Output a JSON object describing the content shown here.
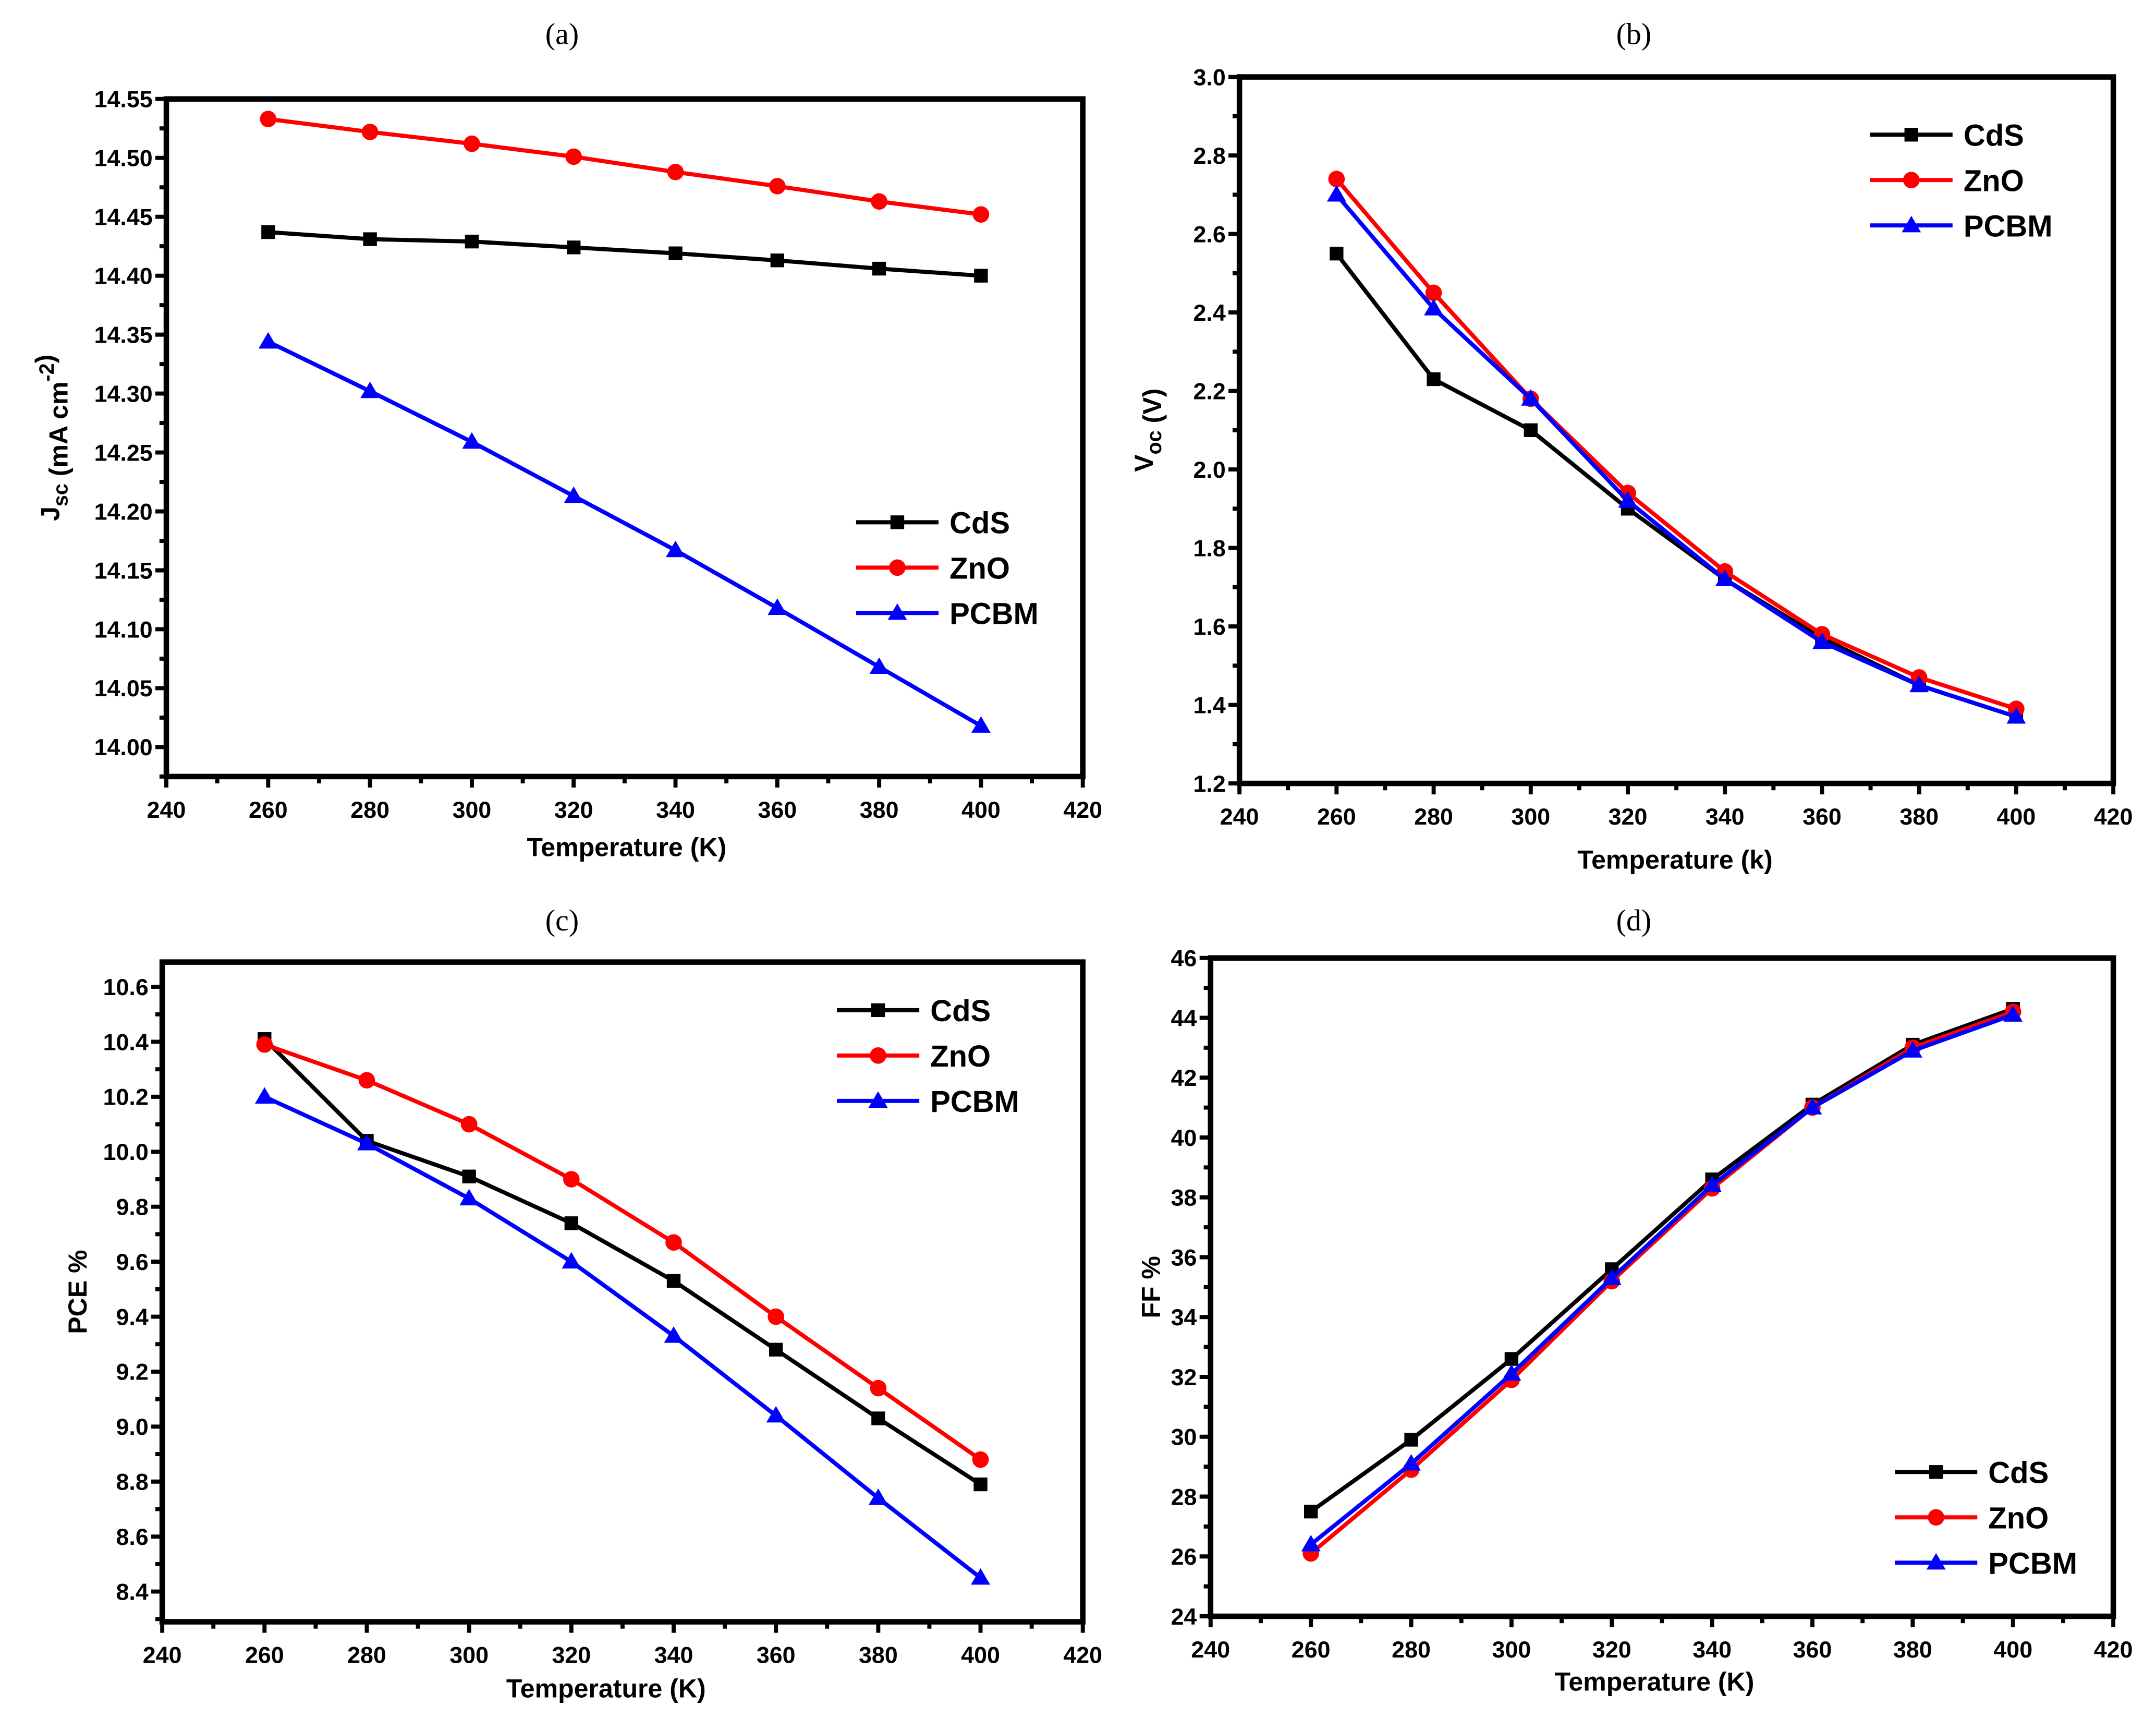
{
  "chart_data": [
    {
      "type": "line",
      "title": "(a)",
      "xlabel": "Temperature (K)",
      "ylabel": "Jsc (mA cm-2)",
      "ylabel_parts": [
        {
          "t": "J"
        },
        {
          "t": "sc",
          "sub": true
        },
        {
          "t": " (mA cm"
        },
        {
          "t": "-2",
          "sup": true
        },
        {
          "t": ")"
        }
      ],
      "xlim": [
        240,
        420
      ],
      "ylim": [
        13.975,
        14.55
      ],
      "xticks": [
        240,
        260,
        280,
        300,
        320,
        340,
        360,
        380,
        400,
        420
      ],
      "yticks": [
        "14.00",
        "14.05",
        "14.10",
        "14.15",
        "14.20",
        "14.25",
        "14.30",
        "14.35",
        "14.40",
        "14.45",
        "14.50",
        "14.55"
      ],
      "legend_position": "center-right",
      "x": [
        260,
        280,
        300,
        320,
        340,
        360,
        380,
        400
      ],
      "series": [
        {
          "name": "CdS",
          "color": "#000000",
          "marker": "square",
          "values": [
            14.437,
            14.431,
            14.429,
            14.424,
            14.419,
            14.413,
            14.406,
            14.4
          ]
        },
        {
          "name": "ZnO",
          "color": "#ff0000",
          "marker": "circle",
          "values": [
            14.533,
            14.522,
            14.512,
            14.501,
            14.488,
            14.476,
            14.463,
            14.452
          ]
        },
        {
          "name": "PCBM",
          "color": "#0000ff",
          "marker": "triangle",
          "values": [
            14.344,
            14.302,
            14.259,
            14.213,
            14.167,
            14.118,
            14.068,
            14.018
          ]
        }
      ]
    },
    {
      "type": "line",
      "title": "(b)",
      "xlabel": "Temperature (k)",
      "ylabel": "Voc (V)",
      "ylabel_parts": [
        {
          "t": "V"
        },
        {
          "t": "oc",
          "sub": true
        },
        {
          "t": " (V)"
        }
      ],
      "xlim": [
        240,
        420
      ],
      "ylim": [
        1.2,
        3.0
      ],
      "xticks": [
        240,
        260,
        280,
        300,
        320,
        340,
        360,
        380,
        400,
        420
      ],
      "yticks": [
        "1.2",
        "1.4",
        "1.6",
        "1.8",
        "2.0",
        "2.2",
        "2.4",
        "2.6",
        "2.8",
        "3.0"
      ],
      "legend_position": "top-right",
      "x": [
        260,
        280,
        300,
        320,
        340,
        360,
        380,
        400
      ],
      "series": [
        {
          "name": "CdS",
          "color": "#000000",
          "marker": "square",
          "values": [
            2.55,
            2.23,
            2.1,
            1.9,
            1.72,
            1.57,
            1.45,
            1.37
          ]
        },
        {
          "name": "ZnO",
          "color": "#ff0000",
          "marker": "circle",
          "values": [
            2.74,
            2.45,
            2.18,
            1.94,
            1.74,
            1.58,
            1.47,
            1.39
          ]
        },
        {
          "name": "PCBM",
          "color": "#0000ff",
          "marker": "triangle",
          "values": [
            2.7,
            2.41,
            2.18,
            1.92,
            1.72,
            1.56,
            1.45,
            1.37
          ]
        }
      ]
    },
    {
      "type": "line",
      "title": "(c)",
      "xlabel": "Temperature (K)",
      "ylabel": "PCE %",
      "ylabel_parts": [
        {
          "t": "PCE %"
        }
      ],
      "xlim": [
        240,
        420
      ],
      "ylim": [
        8.29,
        10.69
      ],
      "xticks": [
        240,
        260,
        280,
        300,
        320,
        340,
        360,
        380,
        400,
        420
      ],
      "yticks": [
        "8.4",
        "8.6",
        "8.8",
        "9.0",
        "9.2",
        "9.4",
        "9.6",
        "9.8",
        "10.0",
        "10.2",
        "10.4",
        "10.6"
      ],
      "legend_position": "top-right",
      "x": [
        260,
        280,
        300,
        320,
        340,
        360,
        380,
        400
      ],
      "series": [
        {
          "name": "CdS",
          "color": "#000000",
          "marker": "square",
          "values": [
            10.41,
            10.04,
            9.91,
            9.74,
            9.53,
            9.28,
            9.03,
            8.79
          ]
        },
        {
          "name": "ZnO",
          "color": "#ff0000",
          "marker": "circle",
          "values": [
            10.39,
            10.26,
            10.1,
            9.9,
            9.67,
            9.4,
            9.14,
            8.88
          ]
        },
        {
          "name": "PCBM",
          "color": "#0000ff",
          "marker": "triangle",
          "values": [
            10.2,
            10.03,
            9.83,
            9.6,
            9.33,
            9.04,
            8.74,
            8.45
          ]
        }
      ]
    },
    {
      "type": "line",
      "title": "(d)",
      "xlabel": "Temperature (K)",
      "ylabel": "FF %",
      "ylabel_parts": [
        {
          "t": "FF %"
        }
      ],
      "xlim": [
        240,
        420
      ],
      "ylim": [
        24,
        46
      ],
      "xticks": [
        240,
        260,
        280,
        300,
        320,
        340,
        360,
        380,
        400,
        420
      ],
      "yticks": [
        "24",
        "26",
        "28",
        "30",
        "32",
        "34",
        "36",
        "38",
        "40",
        "42",
        "44",
        "46"
      ],
      "legend_position": "bottom-right",
      "x": [
        260,
        280,
        300,
        320,
        340,
        360,
        380,
        400
      ],
      "series": [
        {
          "name": "CdS",
          "color": "#000000",
          "marker": "square",
          "values": [
            27.5,
            29.9,
            32.6,
            35.6,
            38.6,
            41.1,
            43.1,
            44.3
          ]
        },
        {
          "name": "ZnO",
          "color": "#ff0000",
          "marker": "circle",
          "values": [
            26.1,
            28.9,
            31.9,
            35.2,
            38.3,
            41.0,
            43.0,
            44.2
          ]
        },
        {
          "name": "PCBM",
          "color": "#0000ff",
          "marker": "triangle",
          "values": [
            26.4,
            29.1,
            32.1,
            35.3,
            38.4,
            41.0,
            42.9,
            44.1
          ]
        }
      ]
    }
  ]
}
